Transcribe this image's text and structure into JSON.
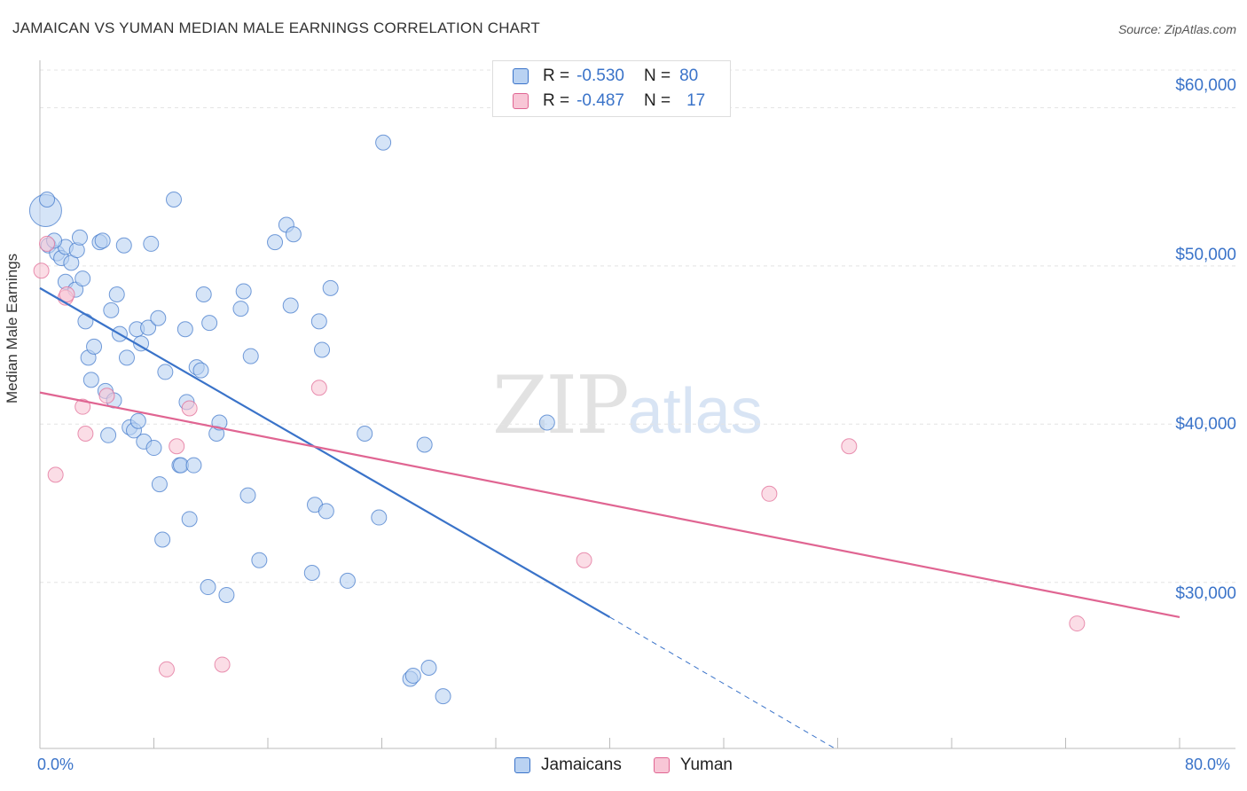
{
  "title": "JAMAICAN VS YUMAN MEDIAN MALE EARNINGS CORRELATION CHART",
  "source": "Source: ZipAtlas.com",
  "watermark": {
    "zip": "ZIP",
    "atlas": "atlas"
  },
  "legend": {
    "series": [
      {
        "r_label": "R =",
        "r_value": "-0.530",
        "n_label": "N =",
        "n_value": "80"
      },
      {
        "r_label": "R =",
        "r_value": "-0.487",
        "n_label": "N =",
        "n_value": "17"
      }
    ]
  },
  "bottom_legend": [
    "Jamaicans",
    "Yuman"
  ],
  "colors": {
    "blue": "#3a73c9",
    "blue_fill": "#b9d2f2",
    "pink": "#e06592",
    "pink_fill": "#f8c6d6"
  },
  "chart_data": {
    "type": "scatter",
    "title": "JAMAICAN VS YUMAN MEDIAN MALE EARNINGS CORRELATION CHART",
    "xlabel": "",
    "ylabel": "Median Male Earnings",
    "xlim": [
      0,
      80
    ],
    "ylim": [
      19500,
      63000
    ],
    "x_tick_labels": [
      "0.0%",
      "80.0%"
    ],
    "y_ticks": [
      {
        "value": 60000,
        "label": "$60,000"
      },
      {
        "value": 50000,
        "label": "$50,000"
      },
      {
        "value": 40000,
        "label": "$40,000"
      },
      {
        "value": 30000,
        "label": "$30,000"
      }
    ],
    "series": [
      {
        "name": "Jamaicans",
        "points": [
          [
            0.4,
            53500
          ],
          [
            0.5,
            54200
          ],
          [
            0.6,
            51300
          ],
          [
            1.2,
            50800
          ],
          [
            1.5,
            50500
          ],
          [
            1.8,
            49000
          ],
          [
            1.8,
            51200
          ],
          [
            2.2,
            50200
          ],
          [
            2.5,
            48500
          ],
          [
            2.6,
            51000
          ],
          [
            2.8,
            51800
          ],
          [
            3.0,
            49200
          ],
          [
            3.2,
            46500
          ],
          [
            3.4,
            44200
          ],
          [
            3.6,
            42800
          ],
          [
            3.8,
            44900
          ],
          [
            4.2,
            51500
          ],
          [
            4.4,
            51600
          ],
          [
            4.6,
            42100
          ],
          [
            4.8,
            39300
          ],
          [
            5.0,
            47200
          ],
          [
            5.2,
            41500
          ],
          [
            5.4,
            48200
          ],
          [
            5.6,
            45700
          ],
          [
            5.9,
            51300
          ],
          [
            6.1,
            44200
          ],
          [
            6.3,
            39800
          ],
          [
            6.6,
            39600
          ],
          [
            6.8,
            46000
          ],
          [
            6.9,
            40200
          ],
          [
            7.1,
            45100
          ],
          [
            7.3,
            38900
          ],
          [
            7.6,
            46100
          ],
          [
            7.8,
            51400
          ],
          [
            8.0,
            38500
          ],
          [
            8.3,
            46700
          ],
          [
            8.4,
            36200
          ],
          [
            8.6,
            32700
          ],
          [
            8.8,
            43300
          ],
          [
            9.4,
            54200
          ],
          [
            9.8,
            37400
          ],
          [
            9.9,
            37400
          ],
          [
            10.2,
            46000
          ],
          [
            10.3,
            41400
          ],
          [
            10.5,
            34000
          ],
          [
            10.8,
            37400
          ],
          [
            11.0,
            43600
          ],
          [
            11.3,
            43400
          ],
          [
            11.5,
            48200
          ],
          [
            11.8,
            29700
          ],
          [
            11.9,
            46400
          ],
          [
            12.4,
            39400
          ],
          [
            12.6,
            40100
          ],
          [
            13.1,
            29200
          ],
          [
            14.1,
            47300
          ],
          [
            14.3,
            48400
          ],
          [
            14.6,
            35500
          ],
          [
            14.8,
            44300
          ],
          [
            15.4,
            31400
          ],
          [
            16.5,
            51500
          ],
          [
            17.3,
            52600
          ],
          [
            17.6,
            47500
          ],
          [
            17.8,
            52000
          ],
          [
            19.1,
            30600
          ],
          [
            19.3,
            34900
          ],
          [
            19.6,
            46500
          ],
          [
            19.8,
            44700
          ],
          [
            20.1,
            34500
          ],
          [
            20.4,
            48600
          ],
          [
            21.6,
            30100
          ],
          [
            22.8,
            39400
          ],
          [
            23.8,
            34100
          ],
          [
            24.1,
            57800
          ],
          [
            26.0,
            23900
          ],
          [
            26.2,
            24100
          ],
          [
            27.0,
            38700
          ],
          [
            27.3,
            24600
          ],
          [
            28.3,
            22800
          ],
          [
            35.6,
            40100
          ],
          [
            1.0,
            51600
          ]
        ],
        "trend": {
          "x0": 0,
          "y0": 48600,
          "x1": 40,
          "y1": 27800,
          "dashed_to_x": 55.8,
          "dashed_to_y": 19500
        }
      },
      {
        "name": "Yuman",
        "points": [
          [
            0.1,
            49700
          ],
          [
            0.5,
            51400
          ],
          [
            1.1,
            36800
          ],
          [
            1.8,
            48000
          ],
          [
            1.9,
            48200
          ],
          [
            3.0,
            41100
          ],
          [
            3.2,
            39400
          ],
          [
            4.7,
            41800
          ],
          [
            8.9,
            24500
          ],
          [
            9.6,
            38600
          ],
          [
            10.5,
            41000
          ],
          [
            12.8,
            24800
          ],
          [
            19.6,
            42300
          ],
          [
            38.2,
            31400
          ],
          [
            51.2,
            35600
          ],
          [
            56.8,
            38600
          ],
          [
            72.8,
            27400
          ]
        ],
        "trend": {
          "x0": 0,
          "y0": 42000,
          "x1": 80,
          "y1": 27800
        }
      }
    ]
  }
}
